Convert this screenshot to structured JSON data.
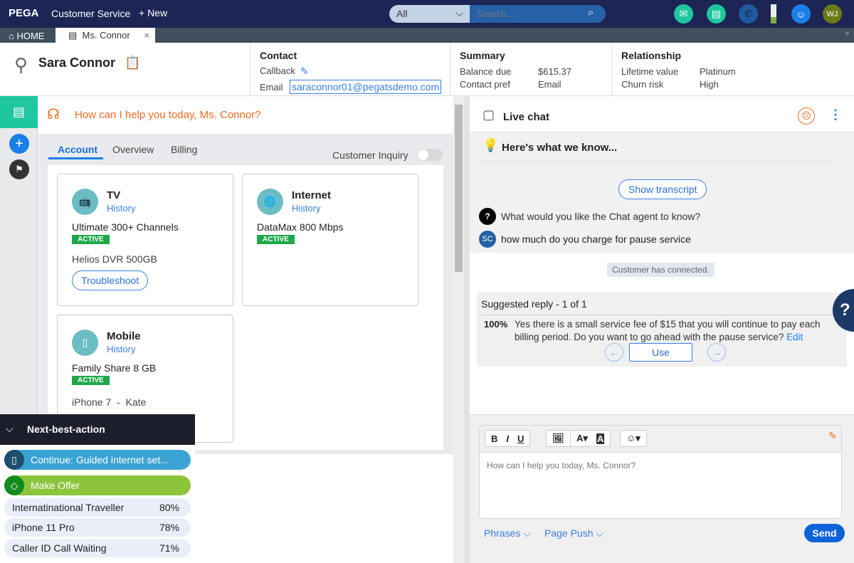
{
  "topbar": {
    "logo": "PEGA",
    "app": "Customer Service",
    "new": "+ New",
    "filter": "All",
    "search_placeholder": "Search...",
    "avatar": "WJ",
    "colors": {
      "bar": "#1c2553",
      "email": "#1fc7a0",
      "chat": "#1fc7a0",
      "phone": "#1f5aa0",
      "bot": "#1a7fe8",
      "avatar": "#6b7a14"
    }
  },
  "tabs": {
    "home": "HOME",
    "active": "Ms. Connor"
  },
  "header": {
    "name": "Sara Connor",
    "contact": {
      "title": "Contact",
      "callback": "Callback",
      "email_label": "Email",
      "email": "saraconnor01@pegatsdemo.com"
    },
    "summary": {
      "title": "Summary",
      "rows": [
        {
          "k": "Balance due",
          "v": "$615.37"
        },
        {
          "k": "Contact pref",
          "v": "Email"
        }
      ]
    },
    "relationship": {
      "title": "Relationship",
      "rows": [
        {
          "k": "Lifetime value",
          "v": "Platinum"
        },
        {
          "k": "Churn risk",
          "v": "High"
        }
      ]
    }
  },
  "main": {
    "greeting": "How can I help you today, Ms. Connor?",
    "tabs": [
      "Account",
      "Overview",
      "Billing"
    ],
    "toggle_label": "Customer Inquiry",
    "cards": [
      {
        "title": "TV",
        "history": "History",
        "plan": "Ultimate 300+ Channels",
        "status": "ACTIVE",
        "extra": "Helios DVR 500GB",
        "button": "Troubleshoot"
      },
      {
        "title": "Internet",
        "history": "History",
        "plan": "DataMax 800 Mbps",
        "status": "ACTIVE"
      },
      {
        "title": "Mobile",
        "history": "History",
        "plan": "Family Share 8 GB",
        "status": "ACTIVE",
        "extra": "iPhone 7  -  Kate"
      }
    ]
  },
  "nba": {
    "title": "Next-best-action",
    "continue": "Continue: Guided internet set...",
    "offer": "Make Offer",
    "items": [
      {
        "name": "Internatinational Traveller",
        "pct": "80%"
      },
      {
        "name": "iPhone 11 Pro",
        "pct": "78%"
      },
      {
        "name": "Caller ID Call Waiting",
        "pct": "71%"
      }
    ]
  },
  "chat": {
    "title": "Live chat",
    "know": "Here's what we know...",
    "show_transcript": "Show transcript",
    "question": "What would you like the Chat agent to know?",
    "customer_initials": "SC",
    "customer_msg": "how much do you charge for pause service",
    "system": "Customer has connected.",
    "suggested_title": "Suggested reply - 1 of 1",
    "confidence": "100%",
    "suggested_text": "Yes there is a small service fee of $15 that you will continue to pay each billing period. Do you want to go ahead with the pause service?",
    "edit": "Edit",
    "use": "Use",
    "composer_placeholder": "How can I help you today, Ms. Connor?",
    "phrases": "Phrases",
    "page_push": "Page Push",
    "send": "Send",
    "help": "?"
  }
}
